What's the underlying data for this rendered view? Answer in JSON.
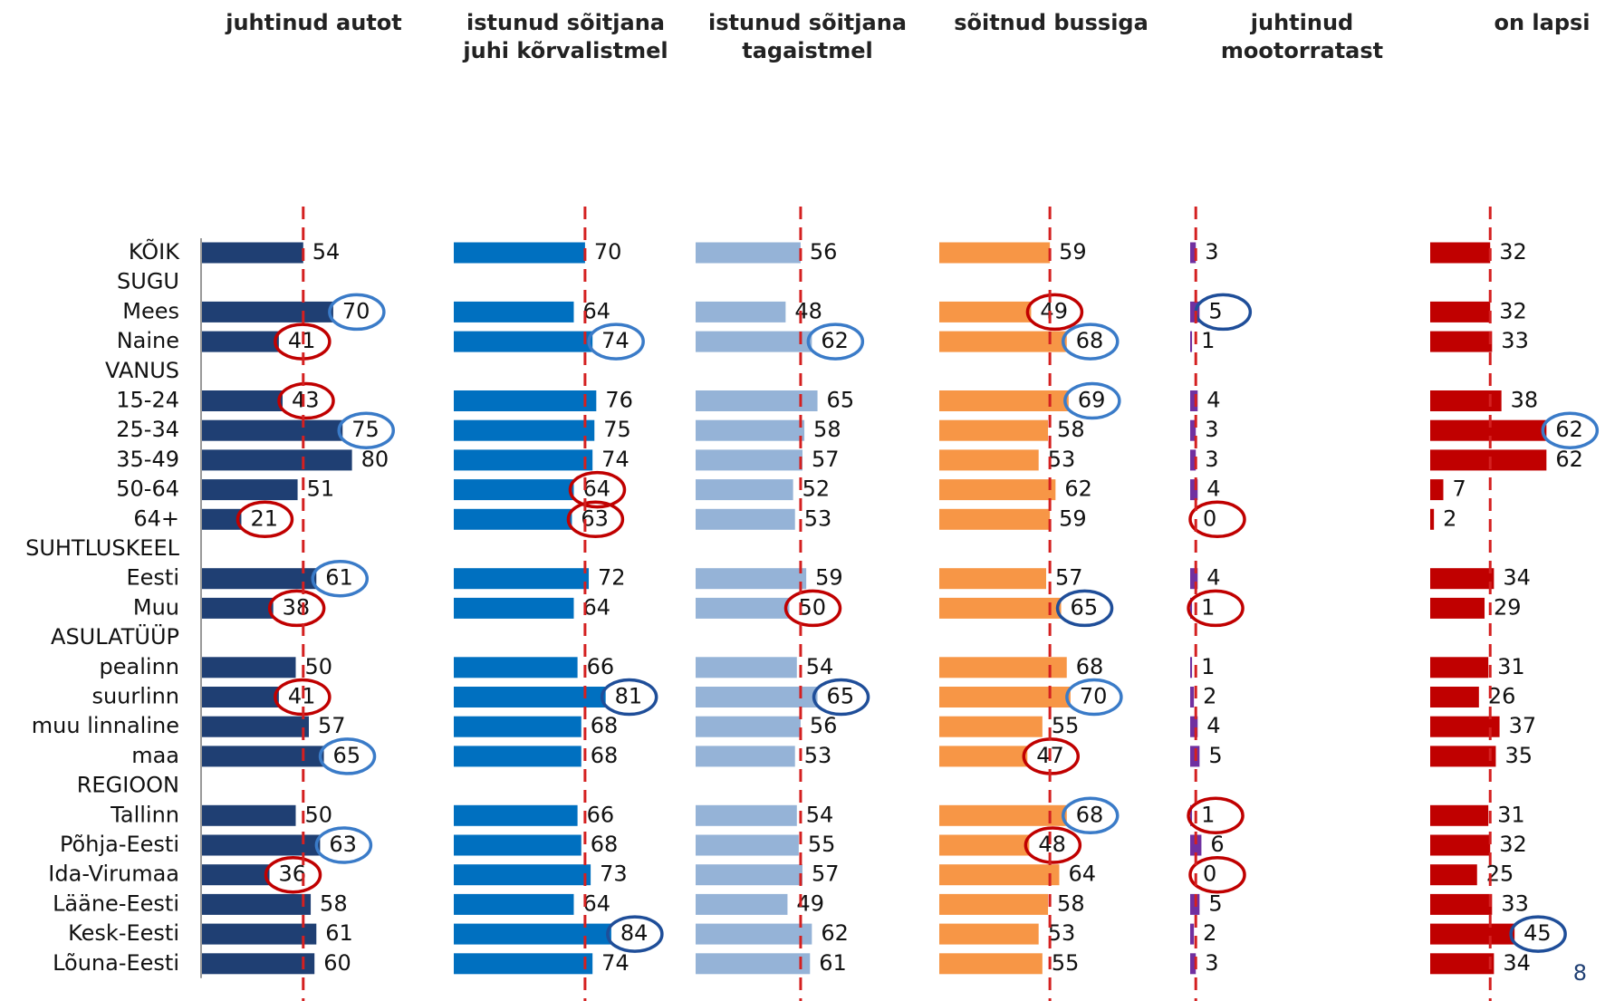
{
  "chart_data": {
    "type": "bar",
    "orientation": "horizontal",
    "xlim": [
      0,
      100
    ],
    "categories": [
      "KÕIK",
      "SUGU",
      "Mees",
      "Naine",
      "VANUS",
      "15-24",
      "25-34",
      "35-49",
      "50-64",
      "64+",
      "SUHTLUSKEEL",
      "Eesti",
      "Muu",
      "ASULATÜÜP",
      "pealinn",
      "suurlinn",
      "muu linnaline",
      "maa",
      "REGIOON",
      "Tallinn",
      "Põhja-Eesti",
      "Ida-Virumaa",
      "Lääne-Eesti",
      "Kesk-Eesti",
      "Lõuna-Eesti"
    ],
    "reference_line_color": "#d42020",
    "series": [
      {
        "name": "juhtinud autot",
        "color": "#1f3f73",
        "values": [
          54,
          null,
          70,
          41,
          null,
          43,
          75,
          80,
          51,
          21,
          null,
          61,
          38,
          null,
          50,
          41,
          57,
          65,
          null,
          50,
          63,
          36,
          58,
          61,
          60
        ],
        "circles": [
          null,
          null,
          "#3a7bc8",
          "#c00000",
          null,
          "#c00000",
          "#3a7bc8",
          null,
          null,
          "#c00000",
          null,
          "#3a7bc8",
          "#c00000",
          null,
          null,
          "#c00000",
          null,
          "#3a7bc8",
          null,
          null,
          "#3a7bc8",
          "#c00000",
          null,
          null,
          null
        ]
      },
      {
        "name": "istunud sõitjana juhi kõrvalistmel",
        "color": "#0070c0",
        "values": [
          70,
          null,
          64,
          74,
          null,
          76,
          75,
          74,
          64,
          63,
          null,
          72,
          64,
          null,
          66,
          81,
          68,
          68,
          null,
          66,
          68,
          73,
          64,
          84,
          74
        ],
        "circles": [
          null,
          null,
          null,
          "#3a7bc8",
          null,
          null,
          null,
          null,
          "#c00000",
          "#c00000",
          null,
          null,
          null,
          null,
          null,
          "#1f4e99",
          null,
          null,
          null,
          null,
          null,
          null,
          null,
          "#1f4e99",
          null
        ]
      },
      {
        "name": "istunud sõitjana tagaistmel",
        "color": "#95b3d7",
        "values": [
          56,
          null,
          48,
          62,
          null,
          65,
          58,
          57,
          52,
          53,
          null,
          59,
          50,
          null,
          54,
          65,
          56,
          53,
          null,
          54,
          55,
          57,
          49,
          62,
          61
        ],
        "circles": [
          null,
          null,
          null,
          "#3a7bc8",
          null,
          null,
          null,
          null,
          null,
          null,
          null,
          null,
          "#c00000",
          null,
          null,
          "#1f4e99",
          null,
          null,
          null,
          null,
          null,
          null,
          null,
          null,
          null
        ]
      },
      {
        "name": "sõitnud bussiga",
        "color": "#f79646",
        "values": [
          59,
          null,
          49,
          68,
          null,
          69,
          58,
          53,
          62,
          59,
          null,
          57,
          65,
          null,
          68,
          70,
          55,
          47,
          null,
          68,
          48,
          64,
          58,
          53,
          55
        ],
        "circles": [
          null,
          null,
          "#c00000",
          "#3a7bc8",
          null,
          "#3a7bc8",
          null,
          null,
          null,
          null,
          null,
          null,
          "#1f4e99",
          null,
          null,
          "#3a7bc8",
          null,
          "#c00000",
          null,
          "#3a7bc8",
          "#c00000",
          null,
          null,
          null,
          null
        ]
      },
      {
        "name": "juhtinud mootorratast",
        "color": "#7030a0",
        "values": [
          3,
          null,
          5,
          1,
          null,
          4,
          3,
          3,
          4,
          0,
          null,
          4,
          1,
          null,
          1,
          2,
          4,
          5,
          null,
          1,
          6,
          0,
          5,
          2,
          3
        ],
        "circles": [
          null,
          null,
          "#1f4e99",
          null,
          null,
          null,
          null,
          null,
          null,
          "#c00000",
          null,
          null,
          "#c00000",
          null,
          null,
          null,
          null,
          null,
          null,
          "#c00000",
          null,
          "#c00000",
          null,
          null,
          null
        ]
      },
      {
        "name": "on lapsi",
        "color": "#c00000",
        "values": [
          32,
          null,
          32,
          33,
          null,
          38,
          62,
          62,
          7,
          2,
          null,
          34,
          29,
          null,
          31,
          26,
          37,
          35,
          null,
          31,
          32,
          25,
          33,
          45,
          34
        ],
        "circles": [
          null,
          null,
          null,
          null,
          null,
          null,
          "#3a7bc8",
          null,
          null,
          null,
          null,
          null,
          null,
          null,
          null,
          null,
          null,
          null,
          null,
          null,
          null,
          null,
          null,
          "#1f4e99",
          null
        ]
      }
    ],
    "page_number": "8"
  }
}
